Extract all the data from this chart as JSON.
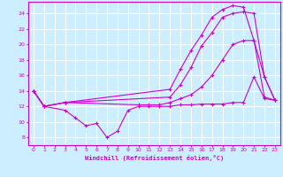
{
  "bg_color": "#cceeff",
  "grid_color": "#ffffff",
  "line_color": "#cc00cc",
  "marker": "+",
  "xlabel": "Windchill (Refroidissement éolien,°C)",
  "xlim": [
    -0.5,
    23.5
  ],
  "ylim": [
    7,
    25.5
  ],
  "yticks": [
    8,
    10,
    12,
    14,
    16,
    18,
    20,
    22,
    24
  ],
  "xticks": [
    0,
    1,
    2,
    3,
    4,
    5,
    6,
    7,
    8,
    9,
    10,
    11,
    12,
    13,
    14,
    15,
    16,
    17,
    18,
    19,
    20,
    21,
    22,
    23
  ],
  "series": [
    {
      "x": [
        0,
        1,
        3,
        4,
        5,
        6,
        7,
        8,
        9,
        10,
        11,
        12,
        13,
        14,
        15,
        16,
        17,
        18,
        19,
        20,
        21,
        22,
        23
      ],
      "y": [
        14,
        12,
        11.5,
        10.5,
        9.5,
        9.8,
        8.0,
        8.8,
        11.5,
        12.0,
        12.0,
        12.0,
        12.0,
        12.2,
        12.2,
        12.3,
        12.3,
        12.3,
        12.5,
        12.5,
        15.8,
        13.0,
        12.8
      ]
    },
    {
      "x": [
        0,
        1,
        3,
        13,
        14,
        15,
        16,
        17,
        18,
        19,
        20,
        21,
        22,
        23
      ],
      "y": [
        14,
        12,
        12.5,
        13.2,
        14.8,
        17.0,
        19.8,
        21.5,
        23.5,
        24.0,
        24.2,
        24.0,
        15.8,
        12.8
      ]
    },
    {
      "x": [
        0,
        1,
        3,
        13,
        14,
        15,
        16,
        17,
        18,
        19,
        20,
        21,
        22,
        23
      ],
      "y": [
        14,
        12,
        12.5,
        14.2,
        16.8,
        19.2,
        21.2,
        23.5,
        24.5,
        25.0,
        24.8,
        20.5,
        15.8,
        12.8
      ]
    },
    {
      "x": [
        0,
        1,
        3,
        10,
        11,
        12,
        13,
        14,
        15,
        16,
        17,
        18,
        19,
        20,
        21,
        22,
        23
      ],
      "y": [
        14,
        12,
        12.5,
        12.2,
        12.2,
        12.2,
        12.5,
        13.0,
        13.5,
        14.5,
        16.0,
        18.0,
        20.0,
        20.5,
        20.5,
        13.2,
        12.8
      ]
    }
  ]
}
